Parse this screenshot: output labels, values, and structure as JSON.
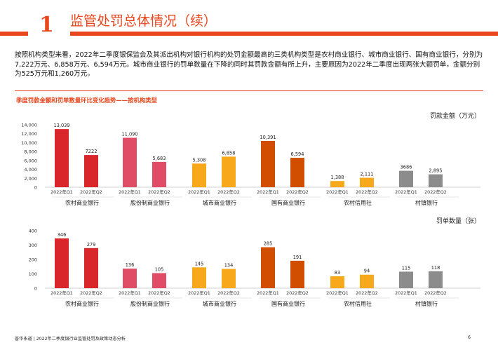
{
  "header": {
    "section_number": "1",
    "title": "监管处罚总体情况（续）"
  },
  "intro_text": "按照机构类型来看，2022年二季度银保监会及其派出机构对银行机构的处罚金额最高的三类机构类型是农村商业银行、城市商业银行、国有商业银行，分别为7,222万元、6,858万元、6,594万元。城市商业银行的罚单数量在下降的同时其罚款金额有所上升，主要原因为2022年二季度出现两张大额罚单，金额分别为525万元和1,260万元。",
  "chart_section_title": "季度罚款金额和罚单数量环比变化趋势——按机构类型",
  "footer": {
    "source": "普华永道 | 2022年二季度银行业监管处罚及政策动态分析",
    "page_number": "6"
  },
  "chart_data": [
    {
      "type": "bar",
      "title": "罚款金额（万元）",
      "groups": [
        "农村商业银行",
        "股份制商业银行",
        "城市商业银行",
        "国有商业银行",
        "农村信用社",
        "村镇银行"
      ],
      "categories": [
        "2022年Q1",
        "2022年Q2"
      ],
      "values": [
        [
          13039,
          7222
        ],
        [
          11090,
          5683
        ],
        [
          5308,
          6858
        ],
        [
          10391,
          6594
        ],
        [
          1388,
          2111
        ],
        [
          3686,
          2895
        ]
      ],
      "value_labels": [
        [
          "13,039",
          "7222"
        ],
        [
          "11,090",
          "5,683"
        ],
        [
          "5,308",
          "6,858"
        ],
        [
          "10,391",
          "6,594"
        ],
        [
          "1,388",
          "2,111"
        ],
        [
          "3686",
          "2,895"
        ]
      ],
      "colors": [
        "#d9262a",
        "#e04b66",
        "#f7a81b",
        "#d14d00",
        "#f7a81b",
        "#8c8c8c"
      ],
      "yticks": [
        "0",
        "2,000",
        "4,000",
        "6,000",
        "8,000",
        "10,000",
        "12,000",
        "14,000"
      ],
      "ylim": [
        0,
        14000
      ],
      "grid": false,
      "legend": "none"
    },
    {
      "type": "bar",
      "title": "罚单数量（张）",
      "groups": [
        "农村商业银行",
        "股份制商业银行",
        "城市商业银行",
        "国有商业银行",
        "农村信用社",
        "村镇银行"
      ],
      "categories": [
        "2022年Q1",
        "2022年Q2"
      ],
      "values": [
        [
          346,
          279
        ],
        [
          136,
          105
        ],
        [
          145,
          134
        ],
        [
          285,
          191
        ],
        [
          83,
          94
        ],
        [
          115,
          118
        ]
      ],
      "value_labels": [
        [
          "346",
          "279"
        ],
        [
          "136",
          "105"
        ],
        [
          "145",
          "134"
        ],
        [
          "285",
          "191"
        ],
        [
          "83",
          "94"
        ],
        [
          "115",
          "118"
        ]
      ],
      "colors": [
        "#d9262a",
        "#e04b66",
        "#f7a81b",
        "#d14d00",
        "#f7a81b",
        "#8c8c8c"
      ],
      "yticks": [
        "0",
        "100",
        "200",
        "300",
        "400"
      ],
      "ylim": [
        0,
        400
      ],
      "grid": false,
      "legend": "none"
    }
  ]
}
